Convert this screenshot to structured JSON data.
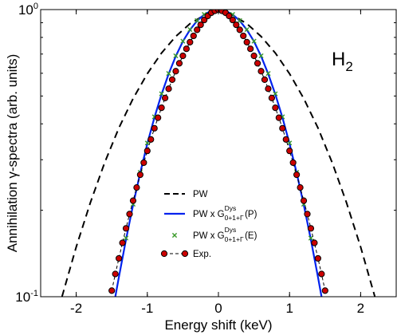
{
  "chart_data": {
    "type": "line",
    "xlabel": "Energy shift (keV)",
    "ylabel": "Annihilation γ-spectra (arb. units)",
    "xlim": [
      -2.5,
      2.5
    ],
    "ylim": [
      0.1,
      1.0
    ],
    "yscale": "log",
    "xticks": [
      -2,
      -1,
      0,
      1,
      2
    ],
    "xtick_labels": [
      "-2",
      "-1",
      "0",
      "1",
      "2"
    ],
    "ytick_labels": [
      {
        "value": 1.0,
        "base": "10",
        "exp": "0"
      },
      {
        "value": 0.1,
        "base": "10",
        "exp": "-1"
      }
    ],
    "grid": false,
    "annotation": {
      "text": "H",
      "subscript": "2"
    },
    "legend": {
      "position": "center-bottom",
      "entries": [
        {
          "label": "PW",
          "sup": "",
          "sub": "",
          "suffix": "",
          "color": "#000000",
          "style": "dashed"
        },
        {
          "label": "PW x G",
          "sup": "Dys",
          "sub": "0+1+Γ",
          "suffix": "(P)",
          "color": "#0022ee",
          "style": "solid"
        },
        {
          "label": "PW x G",
          "sup": "Dys",
          "sub": "0+1+Γ",
          "suffix": "(E)",
          "color": "#3a9a2a",
          "style": "cross"
        },
        {
          "label": "Exp.",
          "sup": "",
          "sub": "",
          "suffix": "",
          "color": "#cc0000",
          "style": "circle-dashed"
        }
      ]
    },
    "series": [
      {
        "name": "PW",
        "color": "#000000",
        "style": "dashed",
        "x": [
          -2.2,
          -2.0,
          -1.8,
          -1.6,
          -1.4,
          -1.2,
          -1.0,
          -0.8,
          -0.6,
          -0.4,
          -0.2,
          0.0,
          0.2,
          0.4,
          0.6,
          0.8,
          1.0,
          1.2,
          1.4,
          1.6,
          1.8,
          2.0,
          2.2
        ],
        "y": [
          0.1,
          0.149,
          0.213,
          0.293,
          0.387,
          0.49,
          0.598,
          0.706,
          0.806,
          0.893,
          0.956,
          1.0,
          0.956,
          0.893,
          0.806,
          0.706,
          0.598,
          0.49,
          0.387,
          0.293,
          0.213,
          0.149,
          0.1
        ]
      },
      {
        "name": "PW x G Dys 0+1+Γ (P)",
        "color": "#0022ee",
        "style": "solid",
        "x": [
          -1.45,
          -1.4,
          -1.3,
          -1.2,
          -1.1,
          -1.0,
          -0.9,
          -0.8,
          -0.7,
          -0.6,
          -0.5,
          -0.4,
          -0.3,
          -0.2,
          -0.1,
          0.0,
          0.1,
          0.2,
          0.3,
          0.4,
          0.5,
          0.6,
          0.7,
          0.8,
          0.9,
          1.0,
          1.1,
          1.2,
          1.3,
          1.4,
          1.45
        ],
        "y": [
          0.1,
          0.117,
          0.158,
          0.209,
          0.27,
          0.341,
          0.421,
          0.507,
          0.597,
          0.688,
          0.775,
          0.85,
          0.914,
          0.961,
          0.99,
          1.0,
          0.99,
          0.961,
          0.914,
          0.85,
          0.775,
          0.688,
          0.597,
          0.507,
          0.421,
          0.341,
          0.27,
          0.209,
          0.158,
          0.117,
          0.1
        ]
      },
      {
        "name": "PW x G Dys 0+1+Γ (E)",
        "color": "#3a9a2a",
        "style": "cross",
        "x": [
          -1.3,
          -1.2,
          -1.1,
          -1.0,
          -0.9,
          -0.8,
          -0.7,
          -0.6,
          -0.5,
          -0.4,
          -0.3,
          -0.2,
          -0.1,
          0.0,
          0.1,
          0.2,
          0.3,
          0.4,
          0.5,
          0.6,
          0.7,
          0.8,
          0.9,
          1.0,
          1.1,
          1.2,
          1.3
        ],
        "y": [
          0.16,
          0.21,
          0.271,
          0.343,
          0.423,
          0.509,
          0.599,
          0.69,
          0.776,
          0.852,
          0.915,
          0.962,
          0.99,
          1.0,
          0.99,
          0.962,
          0.915,
          0.852,
          0.776,
          0.69,
          0.599,
          0.509,
          0.423,
          0.343,
          0.271,
          0.21,
          0.16
        ]
      },
      {
        "name": "Exp.",
        "color": "#cc0000",
        "style": "circle-dashed",
        "x": [
          -1.5,
          -1.45,
          -1.4,
          -1.35,
          -1.3,
          -1.25,
          -1.2,
          -1.15,
          -1.1,
          -1.05,
          -1.0,
          -0.95,
          -0.9,
          -0.85,
          -0.8,
          -0.75,
          -0.7,
          -0.65,
          -0.6,
          -0.55,
          -0.5,
          -0.45,
          -0.4,
          -0.35,
          -0.3,
          -0.25,
          -0.2,
          -0.15,
          -0.1,
          -0.05,
          0.0,
          0.05,
          0.1,
          0.15,
          0.2,
          0.25,
          0.3,
          0.35,
          0.4,
          0.45,
          0.5,
          0.55,
          0.6,
          0.65,
          0.7,
          0.75,
          0.8,
          0.85,
          0.9,
          0.95,
          1.0,
          1.05,
          1.1,
          1.15,
          1.2,
          1.25,
          1.3,
          1.35,
          1.4,
          1.45,
          1.5
        ],
        "y": [
          0.105,
          0.12,
          0.136,
          0.154,
          0.173,
          0.194,
          0.216,
          0.24,
          0.266,
          0.293,
          0.322,
          0.353,
          0.386,
          0.42,
          0.455,
          0.492,
          0.53,
          0.57,
          0.61,
          0.65,
          0.69,
          0.73,
          0.77,
          0.81,
          0.85,
          0.885,
          0.92,
          0.95,
          0.975,
          0.99,
          1.0,
          0.99,
          0.975,
          0.95,
          0.92,
          0.885,
          0.85,
          0.81,
          0.77,
          0.73,
          0.69,
          0.65,
          0.61,
          0.57,
          0.53,
          0.492,
          0.455,
          0.42,
          0.386,
          0.353,
          0.322,
          0.293,
          0.266,
          0.24,
          0.216,
          0.194,
          0.173,
          0.154,
          0.136,
          0.12,
          0.105
        ]
      }
    ]
  }
}
